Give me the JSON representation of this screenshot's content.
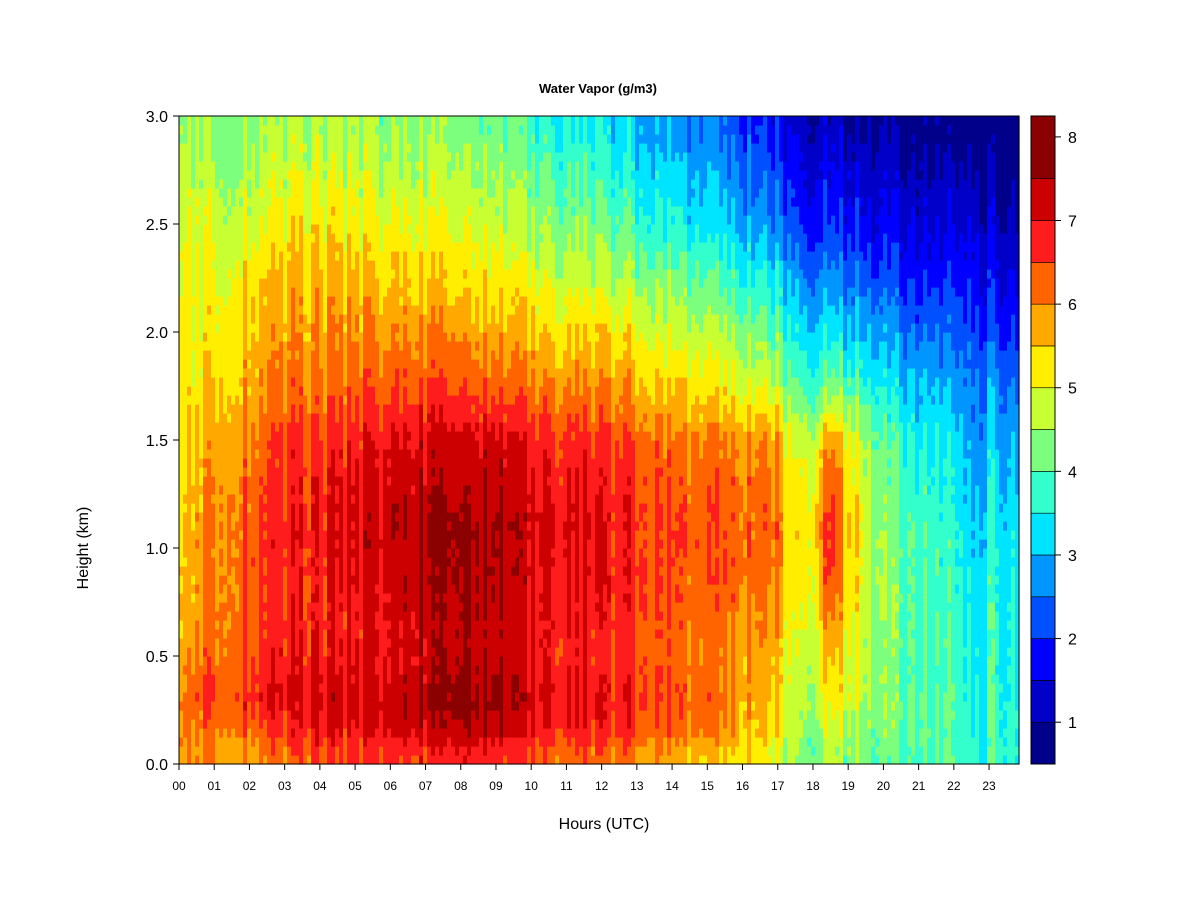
{
  "chart_data": {
    "type": "heatmap",
    "title": "Water Vapor (g/m3)",
    "xlabel": "Hours (UTC)",
    "ylabel": "Height (km)",
    "xlim": [
      0,
      23.85
    ],
    "ylim": [
      0,
      3.0
    ],
    "x_ticks": [
      "00",
      "01",
      "02",
      "03",
      "04",
      "05",
      "06",
      "07",
      "08",
      "09",
      "10",
      "11",
      "12",
      "13",
      "14",
      "15",
      "16",
      "17",
      "18",
      "19",
      "20",
      "21",
      "22",
      "23"
    ],
    "y_ticks": [
      "0.0",
      "0.5",
      "1.0",
      "1.5",
      "2.0",
      "2.5",
      "3.0"
    ],
    "heights_km": [
      0.05,
      0.15,
      0.3,
      0.5,
      0.7,
      0.9,
      1.1,
      1.3,
      1.5,
      1.75,
      2.0,
      2.25,
      2.5,
      2.75,
      2.95
    ],
    "profiles": [
      {
        "hour": 0.0,
        "values": [
          5.7,
          5.8,
          5.8,
          5.5,
          5.3,
          5.3,
          5.2,
          5.2,
          5.1,
          5.0,
          5.0,
          4.9,
          4.7,
          4.5,
          4.3
        ]
      },
      {
        "hour": 0.5,
        "values": [
          5.8,
          6.0,
          6.3,
          6.0,
          5.8,
          5.7,
          5.7,
          5.6,
          5.4,
          5.2,
          5.1,
          5.0,
          4.8,
          4.6,
          4.4
        ]
      },
      {
        "hour": 1.0,
        "values": [
          5.9,
          6.2,
          6.6,
          6.3,
          6.2,
          6.1,
          6.1,
          6.0,
          5.8,
          5.5,
          5.3,
          5.1,
          4.9,
          4.6,
          4.4
        ]
      },
      {
        "hour": 2.0,
        "values": [
          6.0,
          6.4,
          6.9,
          6.6,
          6.5,
          6.5,
          6.5,
          6.4,
          6.2,
          5.9,
          5.7,
          5.5,
          5.0,
          4.7,
          4.5
        ]
      },
      {
        "hour": 3.0,
        "values": [
          6.2,
          6.6,
          7.0,
          6.8,
          6.7,
          6.7,
          6.8,
          6.7,
          6.5,
          6.1,
          5.8,
          5.6,
          5.1,
          4.8,
          4.5
        ]
      },
      {
        "hour": 4.0,
        "values": [
          6.4,
          6.8,
          7.1,
          6.8,
          6.7,
          6.7,
          6.8,
          6.7,
          6.5,
          6.1,
          5.8,
          5.6,
          5.2,
          4.8,
          4.5
        ]
      },
      {
        "hour": 5.0,
        "values": [
          6.5,
          6.9,
          7.1,
          6.9,
          6.9,
          7.0,
          7.1,
          7.0,
          6.8,
          6.3,
          5.9,
          5.6,
          5.1,
          4.8,
          4.5
        ]
      },
      {
        "hour": 6.0,
        "values": [
          6.6,
          7.1,
          7.3,
          7.0,
          7.1,
          7.2,
          7.3,
          7.2,
          7.0,
          6.4,
          5.9,
          5.5,
          5.0,
          4.7,
          4.4
        ]
      },
      {
        "hour": 7.0,
        "values": [
          6.7,
          7.2,
          7.5,
          7.2,
          7.3,
          7.4,
          7.5,
          7.3,
          7.1,
          6.4,
          5.9,
          5.4,
          5.0,
          4.6,
          4.3
        ]
      },
      {
        "hour": 8.0,
        "values": [
          6.8,
          7.3,
          7.6,
          7.4,
          7.4,
          7.5,
          7.5,
          7.3,
          7.1,
          6.3,
          5.8,
          5.3,
          4.8,
          4.5,
          4.2
        ]
      },
      {
        "hour": 9.0,
        "values": [
          6.6,
          7.2,
          7.6,
          7.2,
          7.2,
          7.4,
          7.4,
          7.2,
          7.0,
          6.2,
          5.6,
          5.1,
          4.6,
          4.3,
          4.0
        ]
      },
      {
        "hour": 10.0,
        "values": [
          6.4,
          6.9,
          7.2,
          6.9,
          7.0,
          7.1,
          7.2,
          7.0,
          6.8,
          6.1,
          5.5,
          5.0,
          4.4,
          4.1,
          3.7
        ]
      },
      {
        "hour": 11.0,
        "values": [
          6.3,
          6.8,
          7.0,
          6.8,
          6.9,
          7.0,
          7.1,
          6.9,
          6.7,
          6.0,
          5.4,
          4.8,
          4.3,
          3.9,
          3.5
        ]
      },
      {
        "hour": 12.0,
        "values": [
          6.2,
          6.6,
          6.9,
          6.7,
          6.8,
          6.9,
          6.9,
          6.8,
          6.5,
          5.9,
          5.3,
          4.6,
          4.1,
          3.7,
          3.3
        ]
      },
      {
        "hour": 13.0,
        "values": [
          6.0,
          6.5,
          6.7,
          6.5,
          6.6,
          6.7,
          6.7,
          6.6,
          6.4,
          5.7,
          5.1,
          4.4,
          3.8,
          3.4,
          3.0
        ]
      },
      {
        "hour": 14.0,
        "values": [
          5.7,
          6.2,
          6.4,
          6.2,
          6.3,
          6.4,
          6.4,
          6.3,
          6.1,
          5.4,
          4.8,
          4.2,
          3.5,
          3.1,
          2.7
        ]
      },
      {
        "hour": 15.0,
        "values": [
          5.5,
          6.0,
          6.2,
          6.1,
          6.2,
          6.3,
          6.3,
          6.2,
          6.0,
          5.2,
          4.6,
          3.9,
          3.2,
          2.8,
          2.4
        ]
      },
      {
        "hour": 16.0,
        "values": [
          5.2,
          5.6,
          5.8,
          5.8,
          6.0,
          6.2,
          6.2,
          6.1,
          5.9,
          5.0,
          4.3,
          3.6,
          2.9,
          2.5,
          2.1
        ]
      },
      {
        "hour": 17.0,
        "values": [
          4.9,
          5.3,
          5.5,
          5.6,
          5.9,
          6.1,
          6.2,
          6.0,
          5.8,
          4.7,
          4.0,
          3.3,
          2.5,
          2.1,
          1.7
        ]
      },
      {
        "hour": 17.3,
        "values": [
          4.5,
          4.6,
          4.7,
          4.8,
          5.0,
          5.2,
          5.2,
          5.1,
          4.9,
          4.0,
          3.4,
          2.8,
          2.1,
          1.7,
          1.3
        ]
      },
      {
        "hour": 18.0,
        "values": [
          4.3,
          4.5,
          4.8,
          4.9,
          5.2,
          5.4,
          5.5,
          5.3,
          5.0,
          4.0,
          3.3,
          2.7,
          2.0,
          1.6,
          1.2
        ]
      },
      {
        "hour": 18.5,
        "values": [
          4.5,
          4.8,
          5.2,
          5.6,
          6.1,
          6.6,
          6.7,
          6.4,
          5.9,
          4.1,
          3.3,
          2.6,
          1.9,
          1.5,
          1.1
        ]
      },
      {
        "hour": 19.0,
        "values": [
          4.4,
          4.6,
          4.9,
          5.0,
          5.3,
          5.5,
          5.6,
          5.4,
          5.1,
          4.0,
          3.2,
          2.5,
          1.8,
          1.4,
          1.0
        ]
      },
      {
        "hour": 20.0,
        "values": [
          4.1,
          4.2,
          4.3,
          4.3,
          4.4,
          4.4,
          4.3,
          4.2,
          4.0,
          3.4,
          2.8,
          2.2,
          1.6,
          1.2,
          0.9
        ]
      },
      {
        "hour": 21.0,
        "values": [
          4.0,
          4.1,
          4.1,
          4.0,
          4.0,
          4.0,
          3.9,
          3.8,
          3.6,
          3.1,
          2.5,
          1.9,
          1.5,
          1.1,
          0.8
        ]
      },
      {
        "hour": 22.0,
        "values": [
          3.9,
          3.9,
          3.9,
          3.8,
          3.8,
          3.7,
          3.6,
          3.4,
          3.2,
          2.8,
          2.3,
          1.8,
          1.4,
          1.0,
          0.7
        ]
      },
      {
        "hour": 22.6,
        "values": [
          3.6,
          3.5,
          3.4,
          3.3,
          3.2,
          3.1,
          3.0,
          2.8,
          2.6,
          2.4,
          2.1,
          1.7,
          1.3,
          0.9,
          0.6
        ]
      },
      {
        "hour": 23.0,
        "values": [
          3.8,
          3.8,
          3.8,
          3.7,
          3.7,
          3.6,
          3.5,
          3.3,
          3.1,
          2.7,
          2.2,
          1.7,
          1.3,
          0.9,
          0.6
        ]
      },
      {
        "hour": 23.85,
        "values": [
          3.8,
          3.8,
          3.7,
          3.6,
          3.6,
          3.5,
          3.4,
          3.2,
          3.0,
          2.6,
          2.1,
          1.6,
          1.2,
          0.8,
          0.5
        ]
      }
    ],
    "colorbar": {
      "range": [
        0.5,
        8.25
      ],
      "levels": [
        0.5,
        1.0,
        1.5,
        2.0,
        2.5,
        3.0,
        3.5,
        4.0,
        4.5,
        5.0,
        5.5,
        6.0,
        6.5,
        7.0,
        7.5,
        8.25
      ],
      "colors": [
        "#00008b",
        "#0000c8",
        "#0000ff",
        "#0050ff",
        "#0096ff",
        "#00e5ff",
        "#33ffcc",
        "#7cff7c",
        "#c8ff33",
        "#ffee00",
        "#ffa800",
        "#ff6400",
        "#ff1c1c",
        "#cc0000",
        "#8b0000"
      ],
      "ticks": [
        "1",
        "2",
        "3",
        "4",
        "5",
        "6",
        "7",
        "8"
      ]
    },
    "grid": false,
    "legend": "right"
  }
}
